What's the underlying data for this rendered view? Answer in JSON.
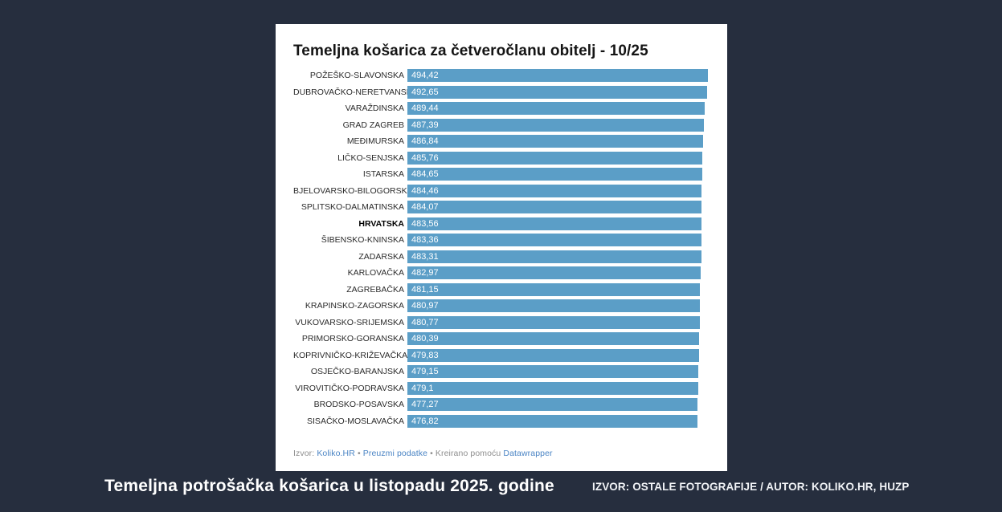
{
  "colors": {
    "page_background": "#262e3e",
    "card_background": "#ffffff",
    "bar_color": "#5b9ec7",
    "bar_value_text": "#ffffff",
    "footer_link_color": "#4a84c4",
    "caption_text": "#ffffff"
  },
  "chart_data": {
    "type": "bar",
    "orientation": "horizontal",
    "title": "Temeljna košarica za četveročlanu obitelj - 10/25",
    "xlabel": "",
    "ylabel": "",
    "xlim": [
      0,
      494.42
    ],
    "grid": false,
    "legend": false,
    "emphasized_category": "HRVATSKA",
    "categories": [
      "POŽEŠKO-SLAVONSKA",
      "DUBROVAČKO-NERETVANSKA",
      "VARAŽDINSKA",
      "GRAD ZAGREB",
      "MEĐIMURSKA",
      "LIČKO-SENJSKA",
      "ISTARSKA",
      "BJELOVARSKO-BILOGORSKA",
      "SPLITSKO-DALMATINSKA",
      "HRVATSKA",
      "ŠIBENSKO-KNINSKA",
      "ZADARSKA",
      "KARLOVAČKA",
      "ZAGREBAČKA",
      "KRAPINSKO-ZAGORSKA",
      "VUKOVARSKO-SRIJEMSKA",
      "PRIMORSKO-GORANSKA",
      "KOPRIVNIČKO-KRIŽEVAČKA",
      "OSJEČKO-BARANJSKA",
      "VIROVITIČKO-PODRAVSKA",
      "BRODSKO-POSAVSKA",
      "SISAČKO-MOSLAVAČKA"
    ],
    "values": [
      494.42,
      492.65,
      489.44,
      487.39,
      486.84,
      485.76,
      484.65,
      484.46,
      484.07,
      483.56,
      483.36,
      483.31,
      482.97,
      481.15,
      480.97,
      480.77,
      480.39,
      479.83,
      479.15,
      479.1,
      477.27,
      476.82
    ],
    "value_labels": [
      "494,42",
      "492,65",
      "489,44",
      "487,39",
      "486,84",
      "485,76",
      "484,65",
      "484,46",
      "484,07",
      "483,56",
      "483,36",
      "483,31",
      "482,97",
      "481,15",
      "480,97",
      "480,77",
      "480,39",
      "479,83",
      "479,15",
      "479,1",
      "477,27",
      "476,82"
    ]
  },
  "chart_footer": {
    "source_prefix": "Izvor:",
    "source_link": "Koliko.HR",
    "separator1": "•",
    "download_link": "Preuzmi podatke",
    "separator2": "•",
    "created_with": "Kreirano pomoću",
    "tool_link": "Datawrapper"
  },
  "page_caption": "Temeljna potrošačka košarica u listopadu 2025. godine",
  "page_credit": "IZVOR: OSTALE FOTOGRAFIJE / AUTOR: KOLIKO.HR, HUZP"
}
